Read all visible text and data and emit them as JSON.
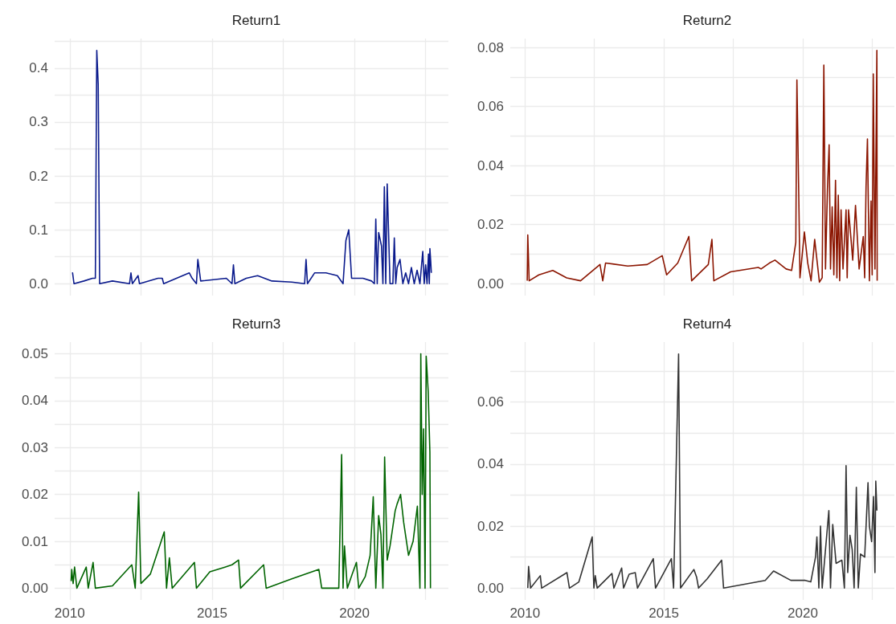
{
  "chart_data": [
    {
      "type": "line",
      "title": "Return1",
      "color": "#0a1a8c",
      "grid": true,
      "tick_labels": "y",
      "xlim": [
        2009.47,
        2023.3
      ],
      "xticks": [
        2010,
        {
          "value": 2012.5,
          "label": null
        },
        2015,
        {
          "value": 2017.5,
          "label": null
        },
        2020,
        {
          "value": 2022.5,
          "label": null
        }
      ],
      "ylim": [
        -0.022,
        0.455
      ],
      "yticks": [
        {
          "value": 0,
          "label": "0.0"
        },
        {
          "value": 0.05,
          "label": null
        },
        {
          "value": 0.1,
          "label": "0.1"
        },
        {
          "value": 0.15,
          "label": null
        },
        {
          "value": 0.2,
          "label": "0.2"
        },
        {
          "value": 0.25,
          "label": null
        },
        {
          "value": 0.3,
          "label": "0.3"
        },
        {
          "value": 0.35,
          "label": null
        },
        {
          "value": 0.4,
          "label": "0.4"
        },
        {
          "value": 0.45,
          "label": null
        }
      ],
      "x": [
        2010.08,
        2010.1,
        2010.15,
        2010.5,
        2010.8,
        2010.9,
        2010.95,
        2011.0,
        2011.05,
        2011.5,
        2012.1,
        2012.15,
        2012.2,
        2012.4,
        2012.45,
        2013.1,
        2013.25,
        2013.3,
        2014.2,
        2014.3,
        2014.45,
        2014.5,
        2014.6,
        2015.5,
        2015.7,
        2015.75,
        2015.8,
        2016.2,
        2016.6,
        2017.1,
        2017.8,
        2018.25,
        2018.3,
        2018.35,
        2018.6,
        2019.0,
        2019.4,
        2019.6,
        2019.7,
        2019.8,
        2019.9,
        2020.3,
        2020.6,
        2020.7,
        2020.75,
        2020.8,
        2020.85,
        2020.95,
        2021.0,
        2021.05,
        2021.1,
        2021.15,
        2021.25,
        2021.35,
        2021.4,
        2021.45,
        2021.5,
        2021.6,
        2021.7,
        2021.8,
        2021.9,
        2022.0,
        2022.1,
        2022.2,
        2022.3,
        2022.4,
        2022.45,
        2022.5,
        2022.55,
        2022.6,
        2022.63,
        2022.65,
        2022.68,
        2022.7
      ],
      "values": [
        0.02,
        0.02,
        0.0,
        0.005,
        0.01,
        0.01,
        0.433,
        0.37,
        0.0,
        0.005,
        0.0,
        0.02,
        0.0,
        0.015,
        0.0,
        0.01,
        0.01,
        0.0,
        0.02,
        0.01,
        0.0,
        0.045,
        0.005,
        0.01,
        0.0,
        0.035,
        0.0,
        0.01,
        0.015,
        0.005,
        0.003,
        0.0,
        0.045,
        0.0,
        0.02,
        0.02,
        0.015,
        0.0,
        0.08,
        0.1,
        0.01,
        0.01,
        0.005,
        0.0,
        0.12,
        0.0,
        0.095,
        0.07,
        0.0,
        0.18,
        0.0,
        0.185,
        0.0,
        0.0,
        0.085,
        0.0,
        0.03,
        0.045,
        0.0,
        0.02,
        0.0,
        0.03,
        0.0,
        0.025,
        0.0,
        0.06,
        0.0,
        0.035,
        0.0,
        0.055,
        0.0,
        0.065,
        0.04,
        0.02
      ]
    },
    {
      "type": "line",
      "title": "Return2",
      "color": "#8b1500",
      "grid": true,
      "tick_labels": "y",
      "xlim": [
        2009.47,
        2023.3
      ],
      "xticks": [
        2010,
        {
          "value": 2012.5,
          "label": null
        },
        2015,
        {
          "value": 2017.5,
          "label": null
        },
        2020,
        {
          "value": 2022.5,
          "label": null
        }
      ],
      "ylim": [
        -0.004,
        0.083
      ],
      "yticks": [
        {
          "value": 0,
          "label": "0.00"
        },
        {
          "value": 0.01,
          "label": null
        },
        {
          "value": 0.02,
          "label": "0.02"
        },
        {
          "value": 0.03,
          "label": null
        },
        {
          "value": 0.04,
          "label": "0.04"
        },
        {
          "value": 0.05,
          "label": null
        },
        {
          "value": 0.06,
          "label": "0.06"
        },
        {
          "value": 0.07,
          "label": null
        },
        {
          "value": 0.08,
          "label": "0.08"
        }
      ],
      "x": [
        2010.08,
        2010.1,
        2010.15,
        2010.5,
        2011.0,
        2011.5,
        2012.0,
        2012.7,
        2012.8,
        2012.9,
        2013.7,
        2014.4,
        2014.94,
        2015.1,
        2015.5,
        2015.9,
        2016.0,
        2016.6,
        2016.73,
        2016.8,
        2017.4,
        2018.4,
        2018.5,
        2018.8,
        2019.0,
        2019.4,
        2019.6,
        2019.75,
        2019.79,
        2019.86,
        2019.9,
        2020.06,
        2020.18,
        2020.3,
        2020.43,
        2020.6,
        2020.7,
        2020.76,
        2020.82,
        2020.89,
        2020.95,
        2021.0,
        2021.06,
        2021.12,
        2021.18,
        2021.23,
        2021.28,
        2021.33,
        2021.38,
        2021.45,
        2021.56,
        2021.6,
        2021.65,
        2021.73,
        2021.8,
        2021.9,
        2022.03,
        2022.18,
        2022.23,
        2022.28,
        2022.33,
        2022.4,
        2022.46,
        2022.5,
        2022.54,
        2022.6,
        2022.67,
        2022.68
      ],
      "values": [
        0.001,
        0.0165,
        0.001,
        0.003,
        0.0045,
        0.002,
        0.001,
        0.0065,
        0.001,
        0.007,
        0.006,
        0.0065,
        0.0095,
        0.003,
        0.007,
        0.016,
        0.001,
        0.0065,
        0.015,
        0.001,
        0.004,
        0.0055,
        0.005,
        0.007,
        0.008,
        0.005,
        0.0045,
        0.014,
        0.069,
        0.028,
        0.002,
        0.0175,
        0.007,
        0.001,
        0.015,
        0.0005,
        0.002,
        0.074,
        0.005,
        0.032,
        0.047,
        0.005,
        0.026,
        0.003,
        0.035,
        0.002,
        0.03,
        0.001,
        0.025,
        0.005,
        0.025,
        0.002,
        0.025,
        0.016,
        0.008,
        0.0265,
        0.005,
        0.016,
        0.002,
        0.033,
        0.049,
        0.001,
        0.028,
        0.003,
        0.071,
        0.005,
        0.079,
        0.001
      ]
    },
    {
      "type": "line",
      "title": "Return3",
      "color": "#006400",
      "grid": true,
      "xlim": [
        2009.47,
        2023.3
      ],
      "xticks": [
        2010,
        {
          "value": 2012.5,
          "label": null
        },
        2015,
        {
          "value": 2017.5,
          "label": null
        },
        2020,
        {
          "value": 2022.5,
          "label": null
        }
      ],
      "ylim": [
        -0.0025,
        0.0525
      ],
      "yticks": [
        {
          "value": 0,
          "label": "0.00"
        },
        {
          "value": 0.005,
          "label": null
        },
        {
          "value": 0.01,
          "label": "0.01"
        },
        {
          "value": 0.015,
          "label": null
        },
        {
          "value": 0.02,
          "label": "0.02"
        },
        {
          "value": 0.025,
          "label": null
        },
        {
          "value": 0.03,
          "label": "0.03"
        },
        {
          "value": 0.035,
          "label": null
        },
        {
          "value": 0.04,
          "label": "0.04"
        },
        {
          "value": 0.045,
          "label": null
        },
        {
          "value": 0.05,
          "label": "0.05"
        }
      ],
      "x": [
        2010.05,
        2010.07,
        2010.12,
        2010.17,
        2010.25,
        2010.58,
        2010.65,
        2010.82,
        2010.9,
        2011.5,
        2012.18,
        2012.3,
        2012.42,
        2012.5,
        2012.83,
        2013.32,
        2013.4,
        2013.5,
        2013.6,
        2014.38,
        2014.45,
        2014.92,
        2015.45,
        2015.7,
        2015.93,
        2016.0,
        2016.81,
        2016.9,
        2017.8,
        2018.75,
        2018.85,
        2019.45,
        2019.55,
        2019.6,
        2019.65,
        2019.75,
        2019.92,
        2020.07,
        2020.15,
        2020.38,
        2020.55,
        2020.66,
        2020.75,
        2020.85,
        2020.93,
        2021.0,
        2021.06,
        2021.15,
        2021.25,
        2021.43,
        2021.5,
        2021.62,
        2021.73,
        2021.9,
        2022.06,
        2022.21,
        2022.3,
        2022.33,
        2022.38,
        2022.43,
        2022.48,
        2022.52,
        2022.59,
        2022.65,
        2022.67
      ],
      "values": [
        0.0015,
        0.004,
        0.001,
        0.0045,
        0.0,
        0.0045,
        0.0,
        0.0055,
        0.0,
        0.0005,
        0.005,
        0.0,
        0.0205,
        0.001,
        0.003,
        0.012,
        0.0,
        0.0065,
        0.0,
        0.0055,
        0.0,
        0.0035,
        0.0045,
        0.005,
        0.006,
        0.0,
        0.005,
        0.0,
        0.002,
        0.004,
        0.0,
        0.0,
        0.0285,
        0.0,
        0.009,
        0.0,
        0.003,
        0.0055,
        0.0,
        0.0025,
        0.007,
        0.0195,
        0.0,
        0.0155,
        0.0115,
        0.0,
        0.028,
        0.006,
        0.009,
        0.0165,
        0.018,
        0.02,
        0.014,
        0.007,
        0.01,
        0.0175,
        0.0,
        0.05,
        0.02,
        0.034,
        0.0,
        0.0495,
        0.042,
        0.029,
        0.0
      ]
    },
    {
      "type": "line",
      "title": "Return4",
      "color": "#333333",
      "grid": true,
      "xlim": [
        2009.47,
        2023.3
      ],
      "xticks": [
        2010,
        {
          "value": 2012.5,
          "label": null
        },
        2015,
        {
          "value": 2017.5,
          "label": null
        },
        2020,
        {
          "value": 2022.5,
          "label": null
        }
      ],
      "ylim": [
        -0.0038,
        0.0793
      ],
      "yticks": [
        {
          "value": 0,
          "label": "0.00"
        },
        {
          "value": 0.01,
          "label": null
        },
        {
          "value": 0.02,
          "label": "0.02"
        },
        {
          "value": 0.03,
          "label": null
        },
        {
          "value": 0.04,
          "label": "0.04"
        },
        {
          "value": 0.05,
          "label": null
        },
        {
          "value": 0.06,
          "label": "0.06"
        },
        {
          "value": 0.07,
          "label": null
        }
      ],
      "x": [
        2010.1,
        2010.13,
        2010.2,
        2010.55,
        2010.6,
        2011.51,
        2011.6,
        2011.94,
        2012.42,
        2012.48,
        2012.53,
        2012.6,
        2013.13,
        2013.2,
        2013.48,
        2013.55,
        2013.75,
        2013.97,
        2014.05,
        2014.62,
        2014.7,
        2015.27,
        2015.35,
        2015.53,
        2015.6,
        2016.08,
        2016.18,
        2016.25,
        2016.56,
        2017.08,
        2017.15,
        2018.65,
        2018.95,
        2019.57,
        2020.09,
        2020.29,
        2020.46,
        2020.51,
        2020.58,
        2020.64,
        2020.7,
        2020.94,
        2021.0,
        2021.08,
        2021.2,
        2021.41,
        2021.5,
        2021.56,
        2021.62,
        2021.7,
        2021.78,
        2021.85,
        2021.93,
        2022.0,
        2022.08,
        2022.23,
        2022.35,
        2022.4,
        2022.48,
        2022.55,
        2022.6,
        2022.63,
        2022.67
      ],
      "values": [
        0.0,
        0.007,
        0.0,
        0.004,
        0.0,
        0.005,
        0.0,
        0.002,
        0.0165,
        0.0,
        0.004,
        0.0,
        0.0047,
        0.0,
        0.0065,
        0.0,
        0.0045,
        0.005,
        0.0,
        0.0095,
        0.0,
        0.0095,
        0.0,
        0.0755,
        0.0,
        0.006,
        0.0035,
        0.0,
        0.003,
        0.009,
        0.0,
        0.0025,
        0.0055,
        0.0025,
        0.0025,
        0.002,
        0.01,
        0.0165,
        0.0,
        0.02,
        0.0,
        0.025,
        0.0,
        0.0205,
        0.008,
        0.009,
        0.0,
        0.0395,
        0.005,
        0.017,
        0.0125,
        0.0,
        0.0325,
        0.0,
        0.011,
        0.01,
        0.034,
        0.02,
        0.015,
        0.0295,
        0.005,
        0.0345,
        0.025
      ]
    }
  ]
}
